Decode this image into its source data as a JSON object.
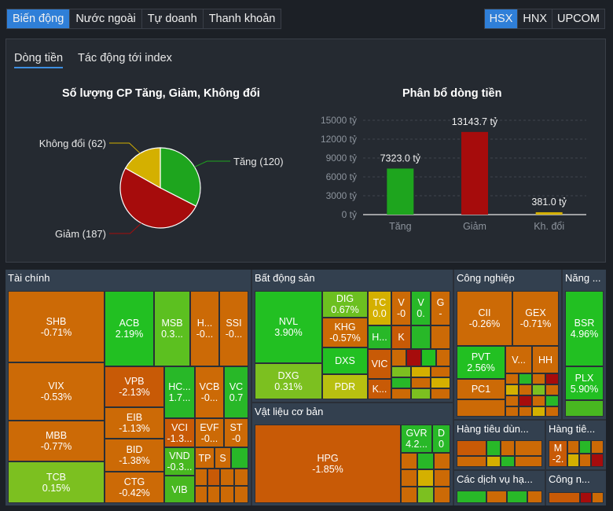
{
  "tabs": [
    "Biến động",
    "Nước ngoài",
    "Tự doanh",
    "Thanh khoản"
  ],
  "exchanges": [
    "HSX",
    "HNX",
    "UPCOM"
  ],
  "subtabs": [
    "Dòng tiền",
    "Tác động tới index"
  ],
  "colors": {
    "up": "#1ea51e",
    "down": "#a60c0c",
    "flat": "#d4b000"
  },
  "pie_title": "Số lượng CP Tăng, Giảm, Không đổi",
  "bar_title": "Phân bổ dòng tiền",
  "chart_data": [
    {
      "type": "pie",
      "title": "Số lượng CP Tăng, Giảm, Không đổi",
      "labels": [
        "Tăng (120)",
        "Giảm (187)",
        "Không đổi (62)"
      ],
      "values": [
        120,
        187,
        62
      ],
      "colors": [
        "#1ea51e",
        "#a60c0c",
        "#d4b000"
      ]
    },
    {
      "type": "bar",
      "title": "Phân bổ dòng tiền",
      "categories": [
        "Tăng",
        "Giảm",
        "Kh. đổi"
      ],
      "values": [
        7323.0,
        13143.7,
        381.0
      ],
      "data_labels": [
        "7323.0 tỷ",
        "13143.7 tỷ",
        "381.0 tỷ"
      ],
      "colors": [
        "#1ea51e",
        "#a60c0c",
        "#d4b000"
      ],
      "ylim": [
        0,
        15000
      ],
      "yticks": [
        "0 tỷ",
        "3000 tỷ",
        "6000 tỷ",
        "9000 tỷ",
        "12000 tỷ",
        "15000 tỷ"
      ],
      "grid": true
    }
  ],
  "sectors": {
    "taichinh": "Tài chính",
    "bds": "Bất động sản",
    "congnghiep": "Công nghiệp",
    "nangluong": "Năng ...",
    "vatlieu": "Vật liệu cơ bản",
    "hangtieudung": "Hàng tiêu dùn...",
    "hangtieudung2": "Hàng tiê...",
    "dichvu": "Các dịch vụ hạ...",
    "congnghe": "Công n..."
  },
  "stocks": {
    "shb": [
      "SHB",
      "-0.71%"
    ],
    "vix": [
      "VIX",
      "-0.53%"
    ],
    "mbb": [
      "MBB",
      "-0.77%"
    ],
    "tcb": [
      "TCB",
      "0.15%"
    ],
    "acb": [
      "ACB",
      "2.19%"
    ],
    "msb": [
      "MSB",
      "0.3..."
    ],
    "hx": [
      "H...",
      "-0..."
    ],
    "ssi": [
      "SSI",
      "-0..."
    ],
    "vpb": [
      "VPB",
      "-2.13%"
    ],
    "eib": [
      "EIB",
      "-1.13%"
    ],
    "bid": [
      "BID",
      "-1.38%"
    ],
    "ctg": [
      "CTG",
      "-0.42%"
    ],
    "hc": [
      "HC...",
      "1.7..."
    ],
    "vcb": [
      "VCB",
      "-0..."
    ],
    "vc": [
      "VC",
      "0.7"
    ],
    "vci": [
      "VCI",
      "-1.3..."
    ],
    "evf": [
      "EVF",
      "-0..."
    ],
    "st": [
      "ST",
      "-0"
    ],
    "vnd": [
      "VND",
      "-0.3..."
    ],
    "tp": [
      "TP",
      ""
    ],
    "s": [
      "S",
      ""
    ],
    "vib": [
      "VIB",
      ""
    ],
    "nvl": [
      "NVL",
      "3.90%"
    ],
    "dxg": [
      "DXG",
      "0.31%"
    ],
    "dig": [
      "DIG",
      "0.67%"
    ],
    "khg": [
      "KHG",
      "-0.57%"
    ],
    "dxs": [
      "DXS",
      ""
    ],
    "pdr": [
      "PDR",
      ""
    ],
    "tc": [
      "TC",
      "0.0"
    ],
    "vb": [
      "V",
      "-0"
    ],
    "vg": [
      "V",
      "0."
    ],
    "g": [
      "G",
      "-"
    ],
    "hb": [
      "H...",
      ""
    ],
    "k": [
      "K",
      ""
    ],
    "vic": [
      "VIC",
      ""
    ],
    "kb": [
      "K...",
      ""
    ],
    "cii": [
      "CII",
      "-0.26%"
    ],
    "gex": [
      "GEX",
      "-0.71%"
    ],
    "pvt": [
      "PVT",
      "2.56%"
    ],
    "vd": [
      "V...",
      ""
    ],
    "hh": [
      "HH",
      ""
    ],
    "pc1": [
      "PC1",
      ""
    ],
    "bsr": [
      "BSR",
      "4.96%"
    ],
    "plx": [
      "PLX",
      "5.90%"
    ],
    "hpg": [
      "HPG",
      "-1.85%"
    ],
    "gvr": [
      "GVR",
      "4.2..."
    ],
    "d": [
      "D",
      "0"
    ],
    "m": [
      "M",
      "-2."
    ]
  }
}
